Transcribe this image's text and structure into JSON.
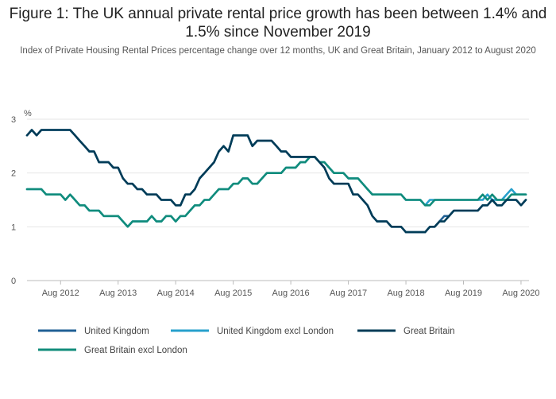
{
  "header": {
    "title": "Figure 1: The UK annual private rental price growth has been between 1.4% and 1.5% since November 2019",
    "subtitle": "Index of Private Housing Rental Prices percentage change over 12 months, UK and Great Britain, January 2012 to August 2020"
  },
  "chart_data": {
    "type": "line",
    "title": "Figure 1: The UK annual private rental price growth has been between 1.4% and 1.5% since November 2019",
    "subtitle": "Index of Private Housing Rental Prices percentage change over 12 months, UK and Great Britain, January 2012 to August 2020",
    "xlabel": "",
    "ylabel": "%",
    "ylim": [
      0,
      3
    ],
    "y_ticks": [
      0,
      1,
      2,
      3
    ],
    "x_start": "Jan 2012",
    "x_end": "Aug 2020",
    "x_tick_labels": [
      "Aug 2012",
      "Aug 2013",
      "Aug 2014",
      "Aug 2015",
      "Aug 2016",
      "Aug 2017",
      "Aug 2018",
      "Aug 2019",
      "Aug 2020"
    ],
    "grid": "horizontal",
    "legend_position": "bottom",
    "colors": {
      "United Kingdom": "#206095",
      "United Kingdom excl London": "#27a0cc",
      "Great Britain": "#003c57",
      "Great Britain excl London": "#118c7b"
    },
    "series": [
      {
        "name": "United Kingdom",
        "values": [
          2.7,
          2.8,
          2.7,
          2.8,
          2.8,
          2.8,
          2.8,
          2.8,
          2.8,
          2.8,
          2.7,
          2.6,
          2.5,
          2.4,
          2.4,
          2.2,
          2.2,
          2.2,
          2.1,
          2.1,
          1.9,
          1.8,
          1.8,
          1.7,
          1.7,
          1.6,
          1.6,
          1.6,
          1.5,
          1.5,
          1.5,
          1.4,
          1.4,
          1.6,
          1.6,
          1.7,
          1.9,
          2.0,
          2.1,
          2.2,
          2.4,
          2.5,
          2.4,
          2.7,
          2.7,
          2.7,
          2.7,
          2.5,
          2.6,
          2.6,
          2.6,
          2.6,
          2.5,
          2.4,
          2.4,
          2.3,
          2.3,
          2.3,
          2.3,
          2.3,
          2.3,
          2.2,
          2.1,
          1.9,
          1.8,
          1.8,
          1.8,
          1.8,
          1.6,
          1.6,
          1.5,
          1.4,
          1.2,
          1.1,
          1.1,
          1.1,
          1.0,
          1.0,
          1.0,
          0.9,
          0.9,
          0.9,
          0.9,
          0.9,
          1.0,
          1.0,
          1.1,
          1.2,
          1.2,
          1.3,
          1.3,
          1.3,
          1.3,
          1.3,
          1.3,
          1.4,
          1.4,
          1.5,
          1.4,
          1.4,
          1.5,
          1.5,
          1.5,
          1.4,
          1.5
        ]
      },
      {
        "name": "United Kingdom excl London",
        "values": [
          1.7,
          1.7,
          1.7,
          1.7,
          1.6,
          1.6,
          1.6,
          1.6,
          1.5,
          1.6,
          1.5,
          1.4,
          1.4,
          1.3,
          1.3,
          1.3,
          1.2,
          1.2,
          1.2,
          1.2,
          1.1,
          1.0,
          1.1,
          1.1,
          1.1,
          1.1,
          1.2,
          1.1,
          1.1,
          1.2,
          1.2,
          1.1,
          1.2,
          1.2,
          1.3,
          1.4,
          1.4,
          1.5,
          1.5,
          1.6,
          1.7,
          1.7,
          1.7,
          1.8,
          1.8,
          1.9,
          1.9,
          1.8,
          1.8,
          1.9,
          2.0,
          2.0,
          2.0,
          2.0,
          2.1,
          2.1,
          2.1,
          2.2,
          2.2,
          2.3,
          2.3,
          2.2,
          2.2,
          2.1,
          2.0,
          2.0,
          2.0,
          1.9,
          1.9,
          1.9,
          1.8,
          1.7,
          1.6,
          1.6,
          1.6,
          1.6,
          1.6,
          1.6,
          1.6,
          1.5,
          1.5,
          1.5,
          1.5,
          1.4,
          1.5,
          1.5,
          1.5,
          1.5,
          1.5,
          1.5,
          1.5,
          1.5,
          1.5,
          1.5,
          1.5,
          1.5,
          1.6,
          1.5,
          1.5,
          1.5,
          1.6,
          1.7,
          1.6,
          1.6,
          1.6
        ]
      },
      {
        "name": "Great Britain",
        "values": [
          2.7,
          2.8,
          2.7,
          2.8,
          2.8,
          2.8,
          2.8,
          2.8,
          2.8,
          2.8,
          2.7,
          2.6,
          2.5,
          2.4,
          2.4,
          2.2,
          2.2,
          2.2,
          2.1,
          2.1,
          1.9,
          1.8,
          1.8,
          1.7,
          1.7,
          1.6,
          1.6,
          1.6,
          1.5,
          1.5,
          1.5,
          1.4,
          1.4,
          1.6,
          1.6,
          1.7,
          1.9,
          2.0,
          2.1,
          2.2,
          2.4,
          2.5,
          2.4,
          2.7,
          2.7,
          2.7,
          2.7,
          2.5,
          2.6,
          2.6,
          2.6,
          2.6,
          2.5,
          2.4,
          2.4,
          2.3,
          2.3,
          2.3,
          2.3,
          2.3,
          2.3,
          2.2,
          2.1,
          1.9,
          1.8,
          1.8,
          1.8,
          1.8,
          1.6,
          1.6,
          1.5,
          1.4,
          1.2,
          1.1,
          1.1,
          1.1,
          1.0,
          1.0,
          1.0,
          0.9,
          0.9,
          0.9,
          0.9,
          0.9,
          1.0,
          1.0,
          1.1,
          1.1,
          1.2,
          1.3,
          1.3,
          1.3,
          1.3,
          1.3,
          1.3,
          1.4,
          1.4,
          1.5,
          1.4,
          1.4,
          1.5,
          1.5,
          1.5,
          1.4,
          1.5
        ]
      },
      {
        "name": "Great Britain excl London",
        "values": [
          1.7,
          1.7,
          1.7,
          1.7,
          1.6,
          1.6,
          1.6,
          1.6,
          1.5,
          1.6,
          1.5,
          1.4,
          1.4,
          1.3,
          1.3,
          1.3,
          1.2,
          1.2,
          1.2,
          1.2,
          1.1,
          1.0,
          1.1,
          1.1,
          1.1,
          1.1,
          1.2,
          1.1,
          1.1,
          1.2,
          1.2,
          1.1,
          1.2,
          1.2,
          1.3,
          1.4,
          1.4,
          1.5,
          1.5,
          1.6,
          1.7,
          1.7,
          1.7,
          1.8,
          1.8,
          1.9,
          1.9,
          1.8,
          1.8,
          1.9,
          2.0,
          2.0,
          2.0,
          2.0,
          2.1,
          2.1,
          2.1,
          2.2,
          2.2,
          2.3,
          2.3,
          2.2,
          2.2,
          2.1,
          2.0,
          2.0,
          2.0,
          1.9,
          1.9,
          1.9,
          1.8,
          1.7,
          1.6,
          1.6,
          1.6,
          1.6,
          1.6,
          1.6,
          1.6,
          1.5,
          1.5,
          1.5,
          1.5,
          1.4,
          1.4,
          1.5,
          1.5,
          1.5,
          1.5,
          1.5,
          1.5,
          1.5,
          1.5,
          1.5,
          1.5,
          1.6,
          1.5,
          1.6,
          1.5,
          1.5,
          1.5,
          1.6,
          1.6,
          1.6,
          1.6
        ]
      }
    ]
  }
}
